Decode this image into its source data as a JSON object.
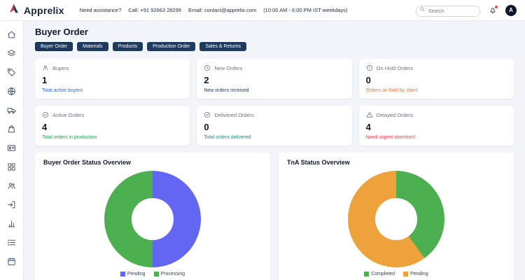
{
  "header": {
    "brand": "Apprelix",
    "assistance": "Need assistance?",
    "call": "Call: +91 92663 28299",
    "email": "Email: contact@apprelix.com",
    "hours": "(10:00 AM - 6:00 PM IST weekdays)",
    "search_placeholder": "Search",
    "avatar_initial": "A"
  },
  "sidebar": {
    "items": [
      "home",
      "layers",
      "tag",
      "globe",
      "truck",
      "shopping-bag",
      "id-card",
      "grid",
      "users",
      "logout",
      "bar-chart",
      "list",
      "calendar"
    ]
  },
  "page": {
    "title": "Buyer Order"
  },
  "tabs": [
    {
      "label": "Buyer Order",
      "active": true
    },
    {
      "label": "Materials",
      "active": false
    },
    {
      "label": "Products",
      "active": false
    },
    {
      "label": "Production Order",
      "active": false
    },
    {
      "label": "Sales & Returns",
      "active": false
    }
  ],
  "stats": [
    {
      "icon": "user-icon",
      "label": "Buyers",
      "value": "1",
      "subtitle": "Total active buyers",
      "color": "#2563eb"
    },
    {
      "icon": "clock-icon",
      "label": "New Orders",
      "value": "2",
      "subtitle": "New orders received",
      "color": "#1e3a5f"
    },
    {
      "icon": "alert-circle-icon",
      "label": "On Hold Orders",
      "value": "0",
      "subtitle": "Orders on hold by client",
      "color": "#e8743b"
    },
    {
      "icon": "check-circle-icon",
      "label": "Active Orders",
      "value": "4",
      "subtitle": "Total orders in production",
      "color": "#16a34a"
    },
    {
      "icon": "check-circle-icon",
      "label": "Delivered Orders",
      "value": "0",
      "subtitle": "Total orders delivered",
      "color": "#0d9488"
    },
    {
      "icon": "alert-triangle-icon",
      "label": "Delayed Orders",
      "value": "4",
      "subtitle": "Need urgent attention!!",
      "color": "#ef4444"
    }
  ],
  "chart_data": [
    {
      "type": "pie",
      "title": "Buyer Order Status Overview",
      "labels": [
        "Pending",
        "Processing"
      ],
      "values": [
        50,
        50
      ],
      "colors": [
        "#6366f1",
        "#4caf50"
      ],
      "legend_position": "bottom"
    },
    {
      "type": "pie",
      "title": "TnA Status Overview",
      "labels": [
        "Completed",
        "Pending"
      ],
      "values": [
        40,
        60
      ],
      "colors": [
        "#4caf50",
        "#eda23b"
      ],
      "legend_position": "bottom"
    }
  ]
}
